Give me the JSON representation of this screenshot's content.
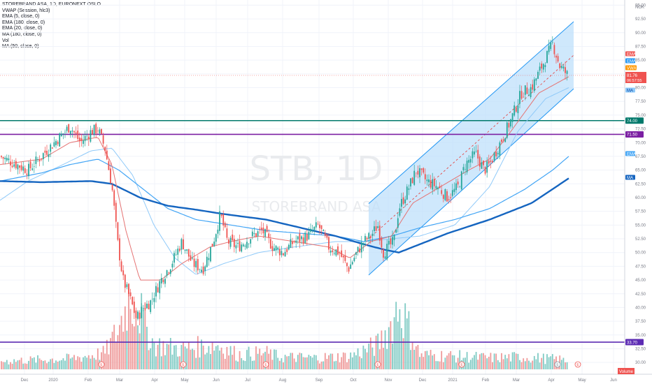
{
  "chart_data": {
    "type": "candlestick",
    "symbol_watermark": "STB, 1D",
    "name_watermark": "STOREBRAND ASA",
    "legend": [
      "STOREBRAND ASA, 1D, EURONEXT OSLO",
      "VWAP (Session, hlc3)",
      "EMA (5, close, 0)",
      "EMA (180, close, 0)",
      "EMA (20, close, 0)",
      "MA (180, close, 0)",
      "Vol",
      "MA (50, close, 0)"
    ],
    "currency": "NOK",
    "y_ticks": [
      "30.00",
      "32.50",
      "35.00",
      "37.50",
      "40.00",
      "42.50",
      "45.00",
      "47.50",
      "50.00",
      "52.50",
      "55.00",
      "57.50",
      "60.00",
      "62.50",
      "65.00",
      "67.50",
      "70.00",
      "72.50",
      "75.00",
      "77.50",
      "80.00",
      "82.50",
      "85.00",
      "87.50",
      "90.00",
      "92.50",
      "95.00"
    ],
    "ylim": [
      28.75,
      95.5
    ],
    "x_ticks": [
      "Dec",
      "2020",
      "Feb",
      "Mar",
      "Apr",
      "May",
      "Jun",
      "Jul",
      "Aug",
      "Sep",
      "Oct",
      "Nov",
      "Dec",
      "2021",
      "Feb",
      "Mar",
      "Apr",
      "May",
      "Jun"
    ],
    "price_tags": {
      "last": "81.76",
      "countdown": "06:57:55",
      "ema_label": "EMA",
      "vwap_label": "VWAP",
      "ma_label": "MA"
    },
    "horizontal_levels": [
      {
        "value": 74.0,
        "label": "74.00",
        "color": "#00796b"
      },
      {
        "value": 71.5,
        "label": "71.50",
        "color": "#7b1fa2"
      },
      {
        "value": 33.7,
        "label": "33.70",
        "color": "#5c2bb3"
      }
    ],
    "volume_label": "Volume",
    "close_anchors": [
      [
        0,
        67.5
      ],
      [
        40,
        65
      ],
      [
        70,
        69
      ],
      [
        100,
        73
      ],
      [
        115,
        70
      ],
      [
        130,
        72
      ],
      [
        140,
        72.5
      ],
      [
        150,
        69
      ],
      [
        160,
        62
      ],
      [
        168,
        52
      ],
      [
        176,
        45
      ],
      [
        185,
        42
      ],
      [
        195,
        38
      ],
      [
        205,
        40
      ],
      [
        215,
        41
      ],
      [
        230,
        45
      ],
      [
        245,
        48
      ],
      [
        260,
        52
      ],
      [
        275,
        48
      ],
      [
        290,
        47
      ],
      [
        305,
        52
      ],
      [
        315,
        57
      ],
      [
        325,
        52
      ],
      [
        340,
        51
      ],
      [
        360,
        53
      ],
      [
        375,
        54
      ],
      [
        390,
        51
      ],
      [
        405,
        50
      ],
      [
        420,
        52
      ],
      [
        440,
        53
      ],
      [
        455,
        55
      ],
      [
        470,
        51
      ],
      [
        485,
        50
      ],
      [
        498,
        47
      ],
      [
        510,
        50
      ],
      [
        520,
        52
      ],
      [
        530,
        53
      ],
      [
        540,
        55
      ],
      [
        548,
        50
      ],
      [
        555,
        51
      ],
      [
        563,
        52
      ],
      [
        570,
        58
      ],
      [
        585,
        62
      ],
      [
        595,
        65
      ],
      [
        610,
        63
      ],
      [
        625,
        62
      ],
      [
        640,
        60
      ],
      [
        655,
        62
      ],
      [
        665,
        66
      ],
      [
        680,
        68
      ],
      [
        692,
        65
      ],
      [
        700,
        66
      ],
      [
        715,
        70
      ],
      [
        730,
        74
      ],
      [
        745,
        79
      ],
      [
        760,
        80
      ],
      [
        775,
        84
      ],
      [
        790,
        88
      ],
      [
        800,
        84
      ],
      [
        813,
        82
      ]
    ],
    "ema20_anchors": [
      [
        0,
        66
      ],
      [
        60,
        67
      ],
      [
        100,
        70
      ],
      [
        140,
        71
      ],
      [
        160,
        66
      ],
      [
        180,
        54
      ],
      [
        200,
        45
      ],
      [
        230,
        45
      ],
      [
        260,
        48
      ],
      [
        300,
        51
      ],
      [
        330,
        52
      ],
      [
        370,
        53
      ],
      [
        420,
        52
      ],
      [
        470,
        51
      ],
      [
        500,
        49
      ],
      [
        530,
        52
      ],
      [
        560,
        53
      ],
      [
        590,
        59
      ],
      [
        630,
        62
      ],
      [
        670,
        65
      ],
      [
        700,
        67
      ],
      [
        730,
        72
      ],
      [
        770,
        79
      ],
      [
        813,
        82
      ]
    ],
    "ema180_anchors": [
      [
        0,
        63
      ],
      [
        60,
        62.8
      ],
      [
        130,
        63
      ],
      [
        160,
        62.5
      ],
      [
        200,
        60
      ],
      [
        240,
        58.5
      ],
      [
        280,
        57.8
      ],
      [
        320,
        57
      ],
      [
        380,
        56
      ],
      [
        430,
        54.5
      ],
      [
        480,
        53
      ],
      [
        520,
        51.5
      ],
      [
        550,
        50.5
      ],
      [
        570,
        50
      ],
      [
        600,
        51.5
      ],
      [
        640,
        53.5
      ],
      [
        700,
        56
      ],
      [
        760,
        59
      ],
      [
        813,
        63.5
      ]
    ],
    "ma180_anchors": [
      [
        0,
        63
      ],
      [
        60,
        64.5
      ],
      [
        100,
        66
      ],
      [
        140,
        67
      ],
      [
        170,
        65
      ],
      [
        200,
        62
      ],
      [
        240,
        58
      ],
      [
        280,
        56
      ],
      [
        330,
        55
      ],
      [
        380,
        54
      ],
      [
        430,
        53.5
      ],
      [
        480,
        53
      ],
      [
        520,
        52
      ],
      [
        560,
        53
      ],
      [
        600,
        54.5
      ],
      [
        650,
        56
      ],
      [
        700,
        58
      ],
      [
        750,
        61.5
      ],
      [
        790,
        65
      ],
      [
        813,
        67.5
      ]
    ],
    "ma50_anchors": [
      [
        0,
        59.5
      ],
      [
        40,
        63
      ],
      [
        90,
        66
      ],
      [
        130,
        68.5
      ],
      [
        160,
        69
      ],
      [
        190,
        64
      ],
      [
        220,
        55
      ],
      [
        250,
        49
      ],
      [
        280,
        46
      ],
      [
        320,
        48
      ],
      [
        370,
        50
      ],
      [
        420,
        51
      ],
      [
        480,
        52
      ],
      [
        520,
        52
      ],
      [
        560,
        52.5
      ],
      [
        600,
        53
      ],
      [
        650,
        55
      ],
      [
        700,
        62
      ],
      [
        740,
        72
      ],
      [
        780,
        78
      ],
      [
        813,
        80
      ]
    ],
    "channel": {
      "x_start": 527,
      "x_end": 820,
      "upper_start": 58.9,
      "upper_end": 92,
      "mid_start": 52.5,
      "mid_end": 85.9,
      "lower_start": 45.9,
      "lower_end": 79.8,
      "fill_color": "#bbdefb"
    },
    "volume_anchors": [
      [
        0,
        0.1
      ],
      [
        100,
        0.13
      ],
      [
        150,
        0.2
      ],
      [
        170,
        0.5
      ],
      [
        185,
        0.9
      ],
      [
        200,
        0.7
      ],
      [
        220,
        0.3
      ],
      [
        260,
        0.25
      ],
      [
        310,
        0.3
      ],
      [
        340,
        0.18
      ],
      [
        380,
        0.2
      ],
      [
        400,
        0.15
      ],
      [
        450,
        0.14
      ],
      [
        500,
        0.16
      ],
      [
        540,
        0.3
      ],
      [
        560,
        0.55
      ],
      [
        570,
        0.8
      ],
      [
        600,
        0.18
      ],
      [
        650,
        0.16
      ],
      [
        700,
        0.14
      ],
      [
        750,
        0.15
      ],
      [
        800,
        0.12
      ],
      [
        813,
        0.1
      ]
    ]
  }
}
